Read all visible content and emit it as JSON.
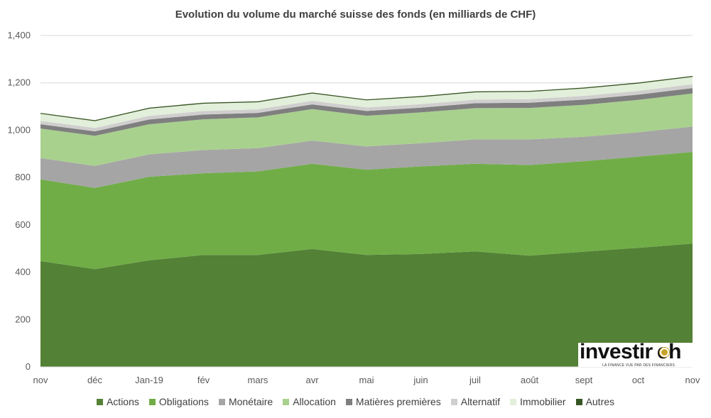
{
  "chart_data": {
    "type": "area",
    "stacked": true,
    "title": "Evolution du volume du marché suisse des fonds (en milliards de CHF)",
    "xlabel": "",
    "ylabel": "",
    "categories": [
      "nov",
      "déc",
      "Jan-19",
      "fév",
      "mars",
      "avr",
      "mai",
      "juin",
      "juil",
      "août",
      "sept",
      "oct",
      "nov"
    ],
    "ylim": [
      0,
      1400
    ],
    "yticks": [
      "0",
      "200",
      "400",
      "600",
      "800",
      "1,000",
      "1,200",
      "1,400"
    ],
    "ytick_values": [
      0,
      200,
      400,
      600,
      800,
      1000,
      1200,
      1400
    ],
    "grid": true,
    "legend_position": "bottom",
    "series": [
      {
        "name": "Actions",
        "color": "#538135",
        "values": [
          447,
          413,
          450,
          473,
          473,
          498,
          473,
          477,
          488,
          470,
          487,
          503,
          521
        ]
      },
      {
        "name": "Obligations",
        "color": "#70ad47",
        "values": [
          345,
          343,
          353,
          345,
          353,
          360,
          360,
          370,
          370,
          383,
          382,
          385,
          387
        ]
      },
      {
        "name": "Monétaire",
        "color": "#a5a5a5",
        "values": [
          90,
          93,
          95,
          98,
          98,
          98,
          98,
          98,
          103,
          108,
          103,
          103,
          107
        ]
      },
      {
        "name": "Allocation",
        "color": "#a9d18e",
        "values": [
          125,
          127,
          127,
          130,
          130,
          133,
          130,
          130,
          132,
          133,
          135,
          137,
          140
        ]
      },
      {
        "name": "Matières premières",
        "color": "#7f7f7f",
        "values": [
          18,
          19,
          20,
          20,
          19,
          20,
          20,
          20,
          21,
          22,
          22,
          22,
          23
        ]
      },
      {
        "name": "Alternatif",
        "color": "#d0cece",
        "values": [
          14,
          14,
          15,
          15,
          15,
          15,
          15,
          15,
          15,
          15,
          16,
          16,
          16
        ]
      },
      {
        "name": "Immobilier",
        "color": "#e2efda",
        "values": [
          30,
          29,
          31,
          31,
          30,
          31,
          30,
          30,
          31,
          31,
          31,
          31,
          31
        ]
      },
      {
        "name": "Autres",
        "color": "#375623",
        "values": [
          4,
          4,
          4,
          4,
          4,
          4,
          4,
          4,
          4,
          4,
          4,
          4,
          4
        ]
      }
    ]
  },
  "logo": {
    "name": "investir.ch",
    "tagline": "LA FINANCE VUE PAR DES FINANCIERS"
  }
}
